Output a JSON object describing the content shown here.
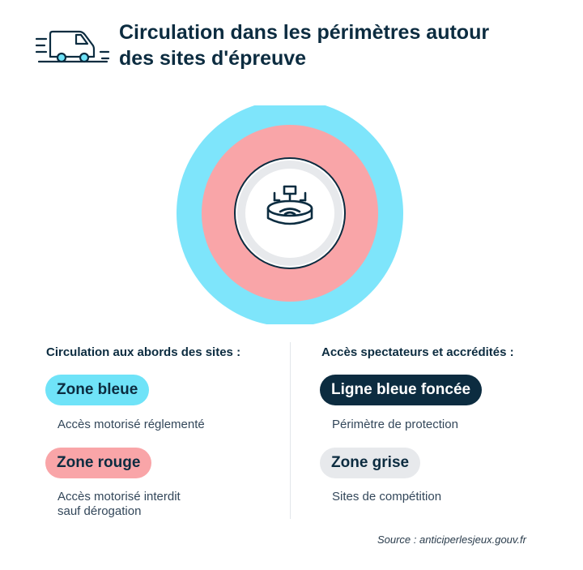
{
  "header": {
    "icon": "van-icon",
    "title_line1": "Circulation dans les périmètres autour",
    "title_line2": "des sites d'épreuve"
  },
  "diagram": {
    "outer_ring_color": "#7ee5fb",
    "middle_ring_color": "#f9a5a8",
    "perimeter_line_color": "#0c2c40",
    "inner_zone_color": "#e7e9ec",
    "center_icon": "stadium-icon"
  },
  "legend": {
    "left": {
      "heading": "Circulation aux abords des sites :",
      "items": [
        {
          "label": "Zone bleue",
          "description": [
            "Accès motorisé réglementé"
          ],
          "color": "#6fe3f8"
        },
        {
          "label": "Zone rouge",
          "description": [
            "Accès motorisé interdit",
            "sauf dérogation"
          ],
          "color": "#f9a5a8"
        }
      ]
    },
    "right": {
      "heading": "Accès spectateurs et accrédités :",
      "items": [
        {
          "label": "Ligne bleue foncée",
          "description": [
            "Périmètre de protection"
          ],
          "color": "#0c2c40"
        },
        {
          "label": "Zone grise",
          "description": [
            "Sites de compétition"
          ],
          "color": "#e7e9ec"
        }
      ]
    }
  },
  "source": "Source : anticiperlesjeux.gouv.fr"
}
